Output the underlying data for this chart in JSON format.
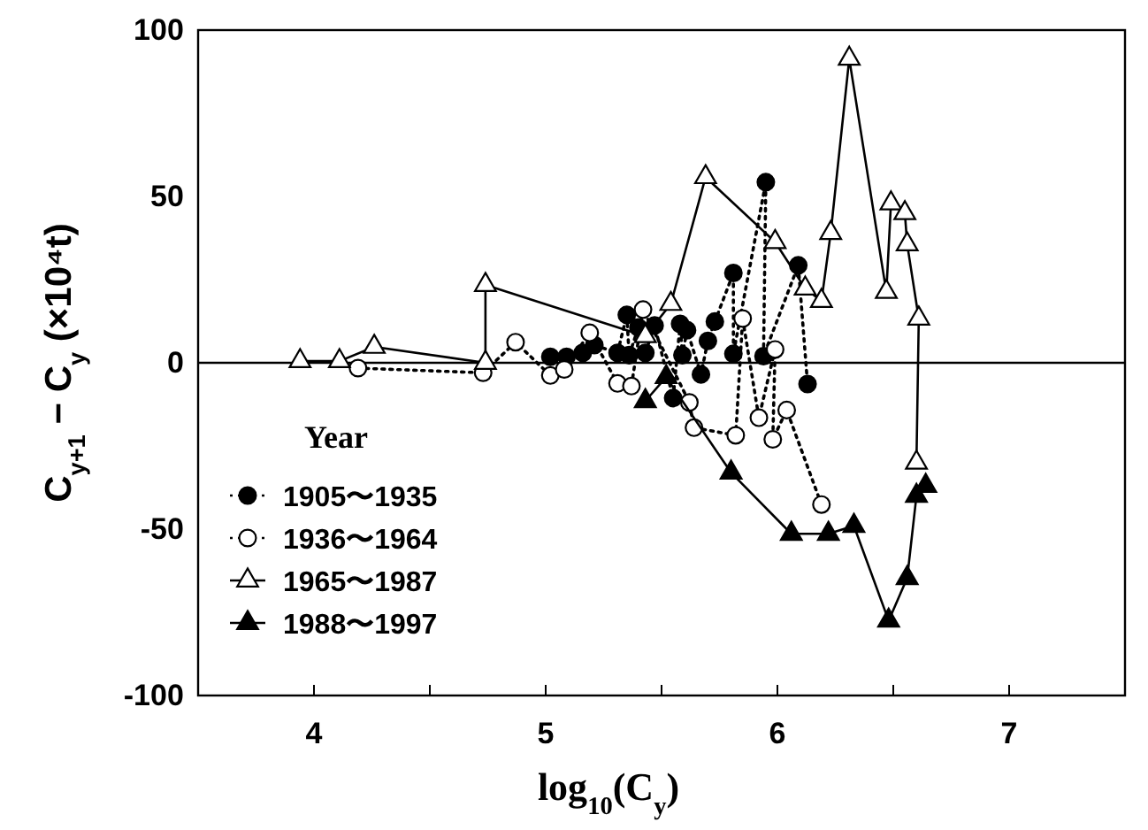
{
  "chart_data": {
    "type": "line",
    "xlabel": "log$_{10}$(C$_{y}$)",
    "ylabel": "C$_{y+1}$ − C$_{y}$ (×10⁴t)",
    "legend_title": "Year",
    "legend": "bottom left",
    "xlim": [
      3.5,
      7.5
    ],
    "ylim": [
      -100,
      100
    ],
    "xticks": [
      4,
      {
        "value": 4.5,
        "label": null
      },
      5,
      {
        "value": 5.5,
        "label": null
      },
      6,
      {
        "value": 6.5,
        "label": null
      },
      7
    ],
    "yticks": [
      -100,
      -50,
      0,
      50,
      100
    ],
    "grid": false,
    "ref_lines": [
      {
        "axis": "y",
        "value": 0,
        "label": null
      }
    ],
    "series": [
      {
        "name": "1905〜1935",
        "color": "#000000",
        "marker": "circle",
        "line_style": "dotted",
        "x": [
          5.02,
          5.09,
          5.16,
          5.21,
          5.31,
          5.35,
          5.36,
          5.4,
          5.43,
          5.47,
          5.55,
          5.58,
          5.59,
          5.61,
          5.67,
          5.7,
          5.73,
          5.81,
          5.81,
          5.95,
          5.94,
          6.09,
          6.13
        ],
        "values": [
          1.8,
          1.8,
          3,
          5.3,
          3,
          14.4,
          2.3,
          10.6,
          3,
          11.2,
          -10.6,
          11.7,
          2.3,
          9.8,
          -3.5,
          6.6,
          12.4,
          27,
          2.7,
          54.3,
          2,
          29.3,
          -6.4
        ]
      },
      {
        "name": "1936〜1964",
        "color": "#ffffff",
        "marker": "circle",
        "line_style": "dotted",
        "x": [
          4.19,
          4.73,
          4.87,
          5.02,
          5.08,
          5.19,
          5.31,
          5.37,
          5.42,
          5.62,
          5.64,
          5.82,
          5.85,
          5.92,
          5.99,
          5.98,
          6.04,
          6.19
        ],
        "values": [
          -1.6,
          -3,
          6.2,
          -3.8,
          -2,
          9,
          -6.2,
          -7,
          16,
          -11.9,
          -19.5,
          -21.8,
          13.3,
          -16.5,
          4,
          -23,
          -14.2,
          -42.6
        ]
      },
      {
        "name": "1965〜1987",
        "color": "#ffffff",
        "marker": "triangle",
        "line_style": "solid",
        "x": [
          3.94,
          4.11,
          4.26,
          4.74,
          4.74,
          5.43,
          5.54,
          5.69,
          5.99,
          6.12,
          6.19,
          6.23,
          6.31,
          6.47,
          6.49,
          6.55,
          6.56,
          6.61,
          6.6
        ],
        "values": [
          0.5,
          0.5,
          4.8,
          0,
          23.4,
          8,
          17.7,
          55.8,
          36.3,
          22.3,
          18.6,
          39,
          91.4,
          21.3,
          47.9,
          45,
          35.6,
          13.3,
          -30
        ]
      },
      {
        "name": "1988〜1997",
        "color": "#000000",
        "marker": "triangle",
        "line_style": "solid",
        "x": [
          5.43,
          5.52,
          5.8,
          6.06,
          6.22,
          6.33,
          6.48,
          6.56,
          6.6,
          6.64
        ],
        "values": [
          -11.5,
          -4.3,
          -33,
          -51.4,
          -51.4,
          -49,
          -77.5,
          -64.7,
          -40,
          -37
        ]
      }
    ]
  }
}
